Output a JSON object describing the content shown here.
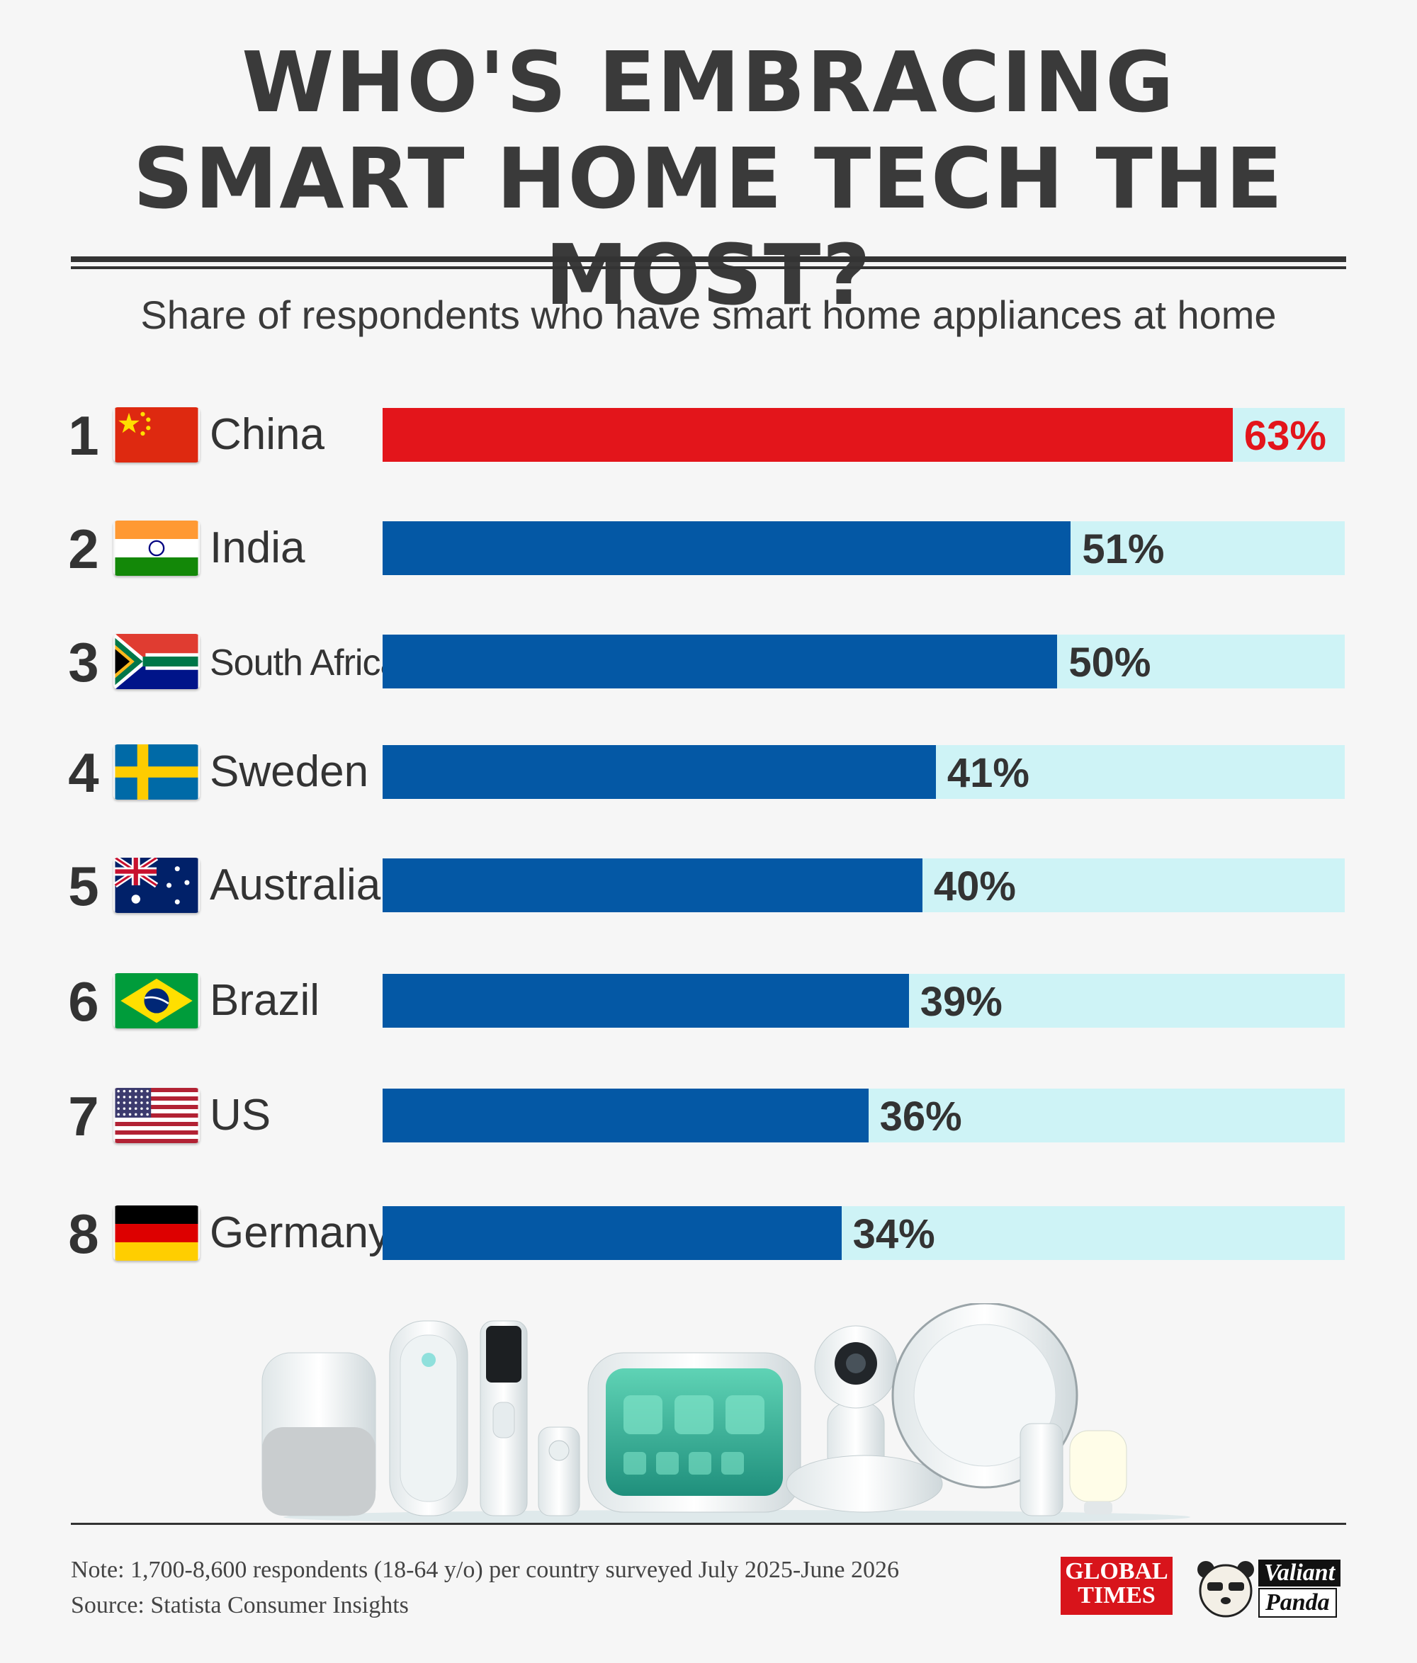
{
  "header": {
    "title_line1": "WHO'S EMBRACING",
    "title_line2": "SMART HOME TECH THE MOST?",
    "subtitle": "Share of respondents who have smart home appliances at home"
  },
  "chart_data": {
    "type": "bar",
    "orientation": "horizontal",
    "title": "WHO'S EMBRACING SMART HOME TECH THE MOST?",
    "subtitle": "Share of respondents who have smart home appliances at home",
    "unit": "%",
    "xlim": [
      0,
      100
    ],
    "grid": false,
    "legend": "none",
    "categories": [
      "China",
      "India",
      "South Africa",
      "Sweden",
      "Australia",
      "Brazil",
      "US",
      "Germany"
    ],
    "ranks": [
      "1",
      "2",
      "3",
      "4",
      "5",
      "6",
      "7",
      "8"
    ],
    "values": [
      63,
      51,
      50,
      41,
      40,
      39,
      36,
      34
    ],
    "labels": [
      "63%",
      "51%",
      "50%",
      "41%",
      "40%",
      "39%",
      "36%",
      "34%"
    ],
    "flags": [
      "china-flag-icon",
      "india-flag-icon",
      "south-africa-flag-icon",
      "sweden-flag-icon",
      "australia-flag-icon",
      "brazil-flag-icon",
      "us-flag-icon",
      "germany-flag-icon"
    ]
  },
  "colors": {
    "highlight_bar": "#e3151b",
    "bar": "#0458a5",
    "track": "#cef3f6",
    "highlight_label": "#e3151b",
    "label": "#333333"
  },
  "footer": {
    "note": "Note: 1,700-8,600 respondents (18-64 y/o) per country surveyed July 2025-June 2026",
    "source": "Source: Statista Consumer Insights",
    "logo1_line1": "GLOBAL",
    "logo1_line2": "TIMES",
    "logo2_line1": "Valiant",
    "logo2_line2": "Panda"
  },
  "illustration": "smart-home-devices-icon"
}
